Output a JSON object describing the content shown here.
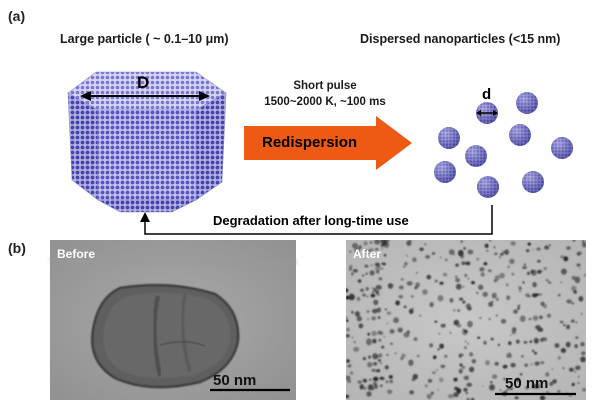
{
  "panel_a": {
    "label": "(a)",
    "large_particle_title": "Large particle ( ~ 0.1–10 μm)",
    "dispersed_title": "Dispersed nanoparticles (<15 nm)",
    "large_particle_dimension": "D",
    "nanoparticle_dimension": "d",
    "pulse_line1": "Short pulse",
    "pulse_line2": "1500~2000 K, ~100 ms",
    "arrow_text": "Redispersion",
    "degradation_text": "Degradation after long-time use",
    "colors": {
      "arrow": "#ee5a14",
      "particle": "#5b59c6"
    }
  },
  "panel_b": {
    "label": "(b)",
    "before_label": "Before",
    "after_label": "After",
    "before_scale": "50 nm",
    "after_scale": "50 nm"
  }
}
